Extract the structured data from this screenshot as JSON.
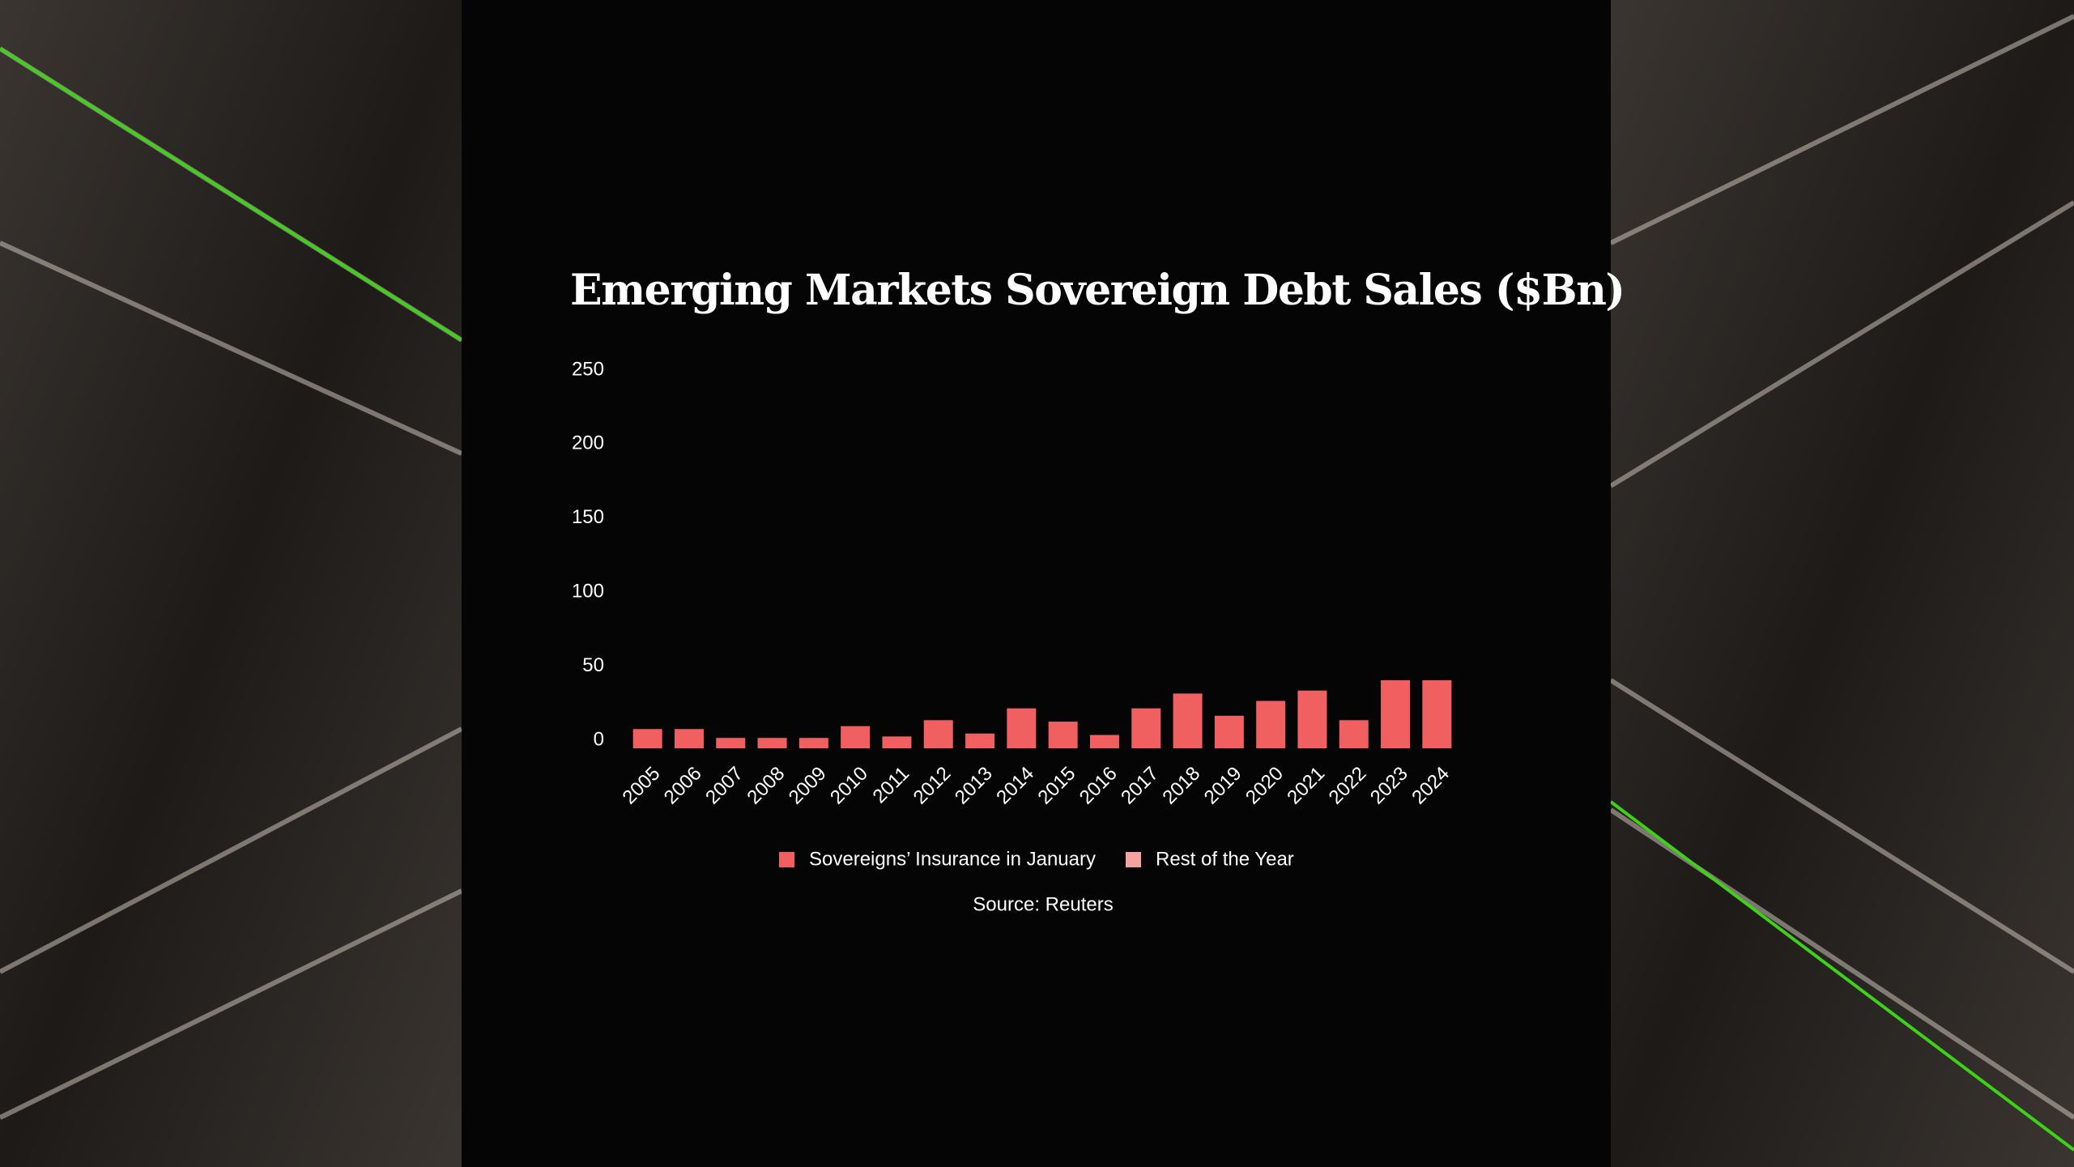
{
  "chart_data": {
    "type": "stacked_bar",
    "title": "Emerging Markets Sovereign Debt Sales ($Bn)",
    "categories": [
      "2005",
      "2006",
      "2007",
      "2008",
      "2009",
      "2010",
      "2011",
      "2012",
      "2013",
      "2014",
      "2015",
      "2016",
      "2017",
      "2018",
      "2019",
      "2020",
      "2021",
      "2022",
      "2023",
      "2024"
    ],
    "series": [
      {
        "name": "Sovereigns’ Insurance in January",
        "color": "#f06060",
        "values": [
          13,
          13,
          7,
          7,
          7,
          15,
          8,
          19,
          10,
          27,
          18,
          9,
          27,
          37,
          22,
          32,
          39,
          19,
          46,
          46
        ]
      },
      {
        "name": "Rest of the Year",
        "color": "#f5a3a0",
        "values": [
          null,
          null,
          null,
          null,
          null,
          null,
          null,
          null,
          null,
          null,
          null,
          null,
          null,
          null,
          null,
          null,
          null,
          null,
          null,
          null
        ]
      }
    ],
    "ylim": [
      0,
      250
    ],
    "yticks": [
      0,
      50,
      100,
      150,
      200,
      250
    ],
    "grid": false,
    "legend": "bottom",
    "source": "Source: Reuters"
  }
}
